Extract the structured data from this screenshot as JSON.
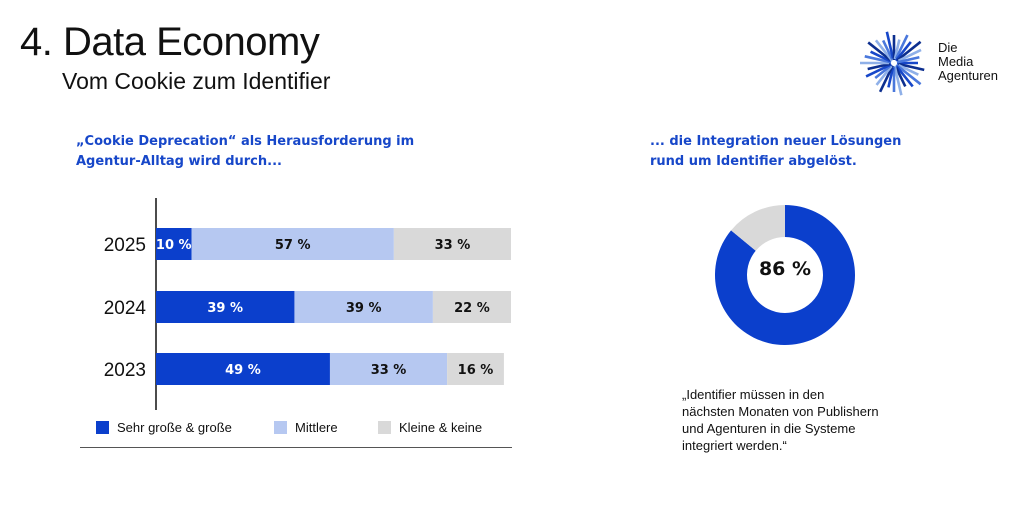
{
  "header": {
    "title": "4. Data Economy",
    "subtitle": "Vom Cookie zum Identifier"
  },
  "logo": {
    "icon": "starburst-logo-icon",
    "lines": [
      "Die",
      "Media",
      "Agenturen"
    ],
    "colors": [
      "#1747c9",
      "#0d2f8f",
      "#8fb0e8",
      "#4a78dc"
    ]
  },
  "left_heading": {
    "lines": [
      "„Cookie Deprecation“ als Herausforderung im",
      "Agentur-Alltag wird durch..."
    ]
  },
  "right_heading": {
    "lines": [
      "... die Integration neuer Lösungen",
      "rund um Identifier abgelöst."
    ]
  },
  "quote": {
    "lines": [
      "„Identifier müssen in den",
      "nächsten Monaten von Publishern",
      "und Agenturen in die Systeme",
      "integriert werden.“"
    ]
  },
  "colors": {
    "accent": "#1747c9",
    "dark_blue": "#0b3fcc",
    "light_blue": "#b6c8f1",
    "gray": "#d9d9d9"
  },
  "chart_data": [
    {
      "type": "bar",
      "orientation": "horizontal",
      "stacked": true,
      "categories": [
        "2025",
        "2024",
        "2023"
      ],
      "series": [
        {
          "name": "Sehr große & große",
          "values": [
            10,
            39,
            49
          ],
          "labels": [
            "10 %",
            "39 %",
            "49 %"
          ],
          "color": "#0b3fcc"
        },
        {
          "name": "Mittlere",
          "values": [
            57,
            39,
            33
          ],
          "labels": [
            "57 %",
            "39 %",
            "33 %"
          ],
          "color": "#b6c8f1"
        },
        {
          "name": "Kleine & keine",
          "values": [
            33,
            22,
            16
          ],
          "labels": [
            "33 %",
            "22 %",
            "16 %"
          ],
          "color": "#d9d9d9"
        }
      ],
      "xlim": [
        0,
        100
      ],
      "legend": "bottom"
    },
    {
      "type": "pie",
      "donut": true,
      "values": [
        86,
        14
      ],
      "colors": [
        "#0b3fcc",
        "#d9d9d9"
      ],
      "center_label": "86 %"
    }
  ]
}
